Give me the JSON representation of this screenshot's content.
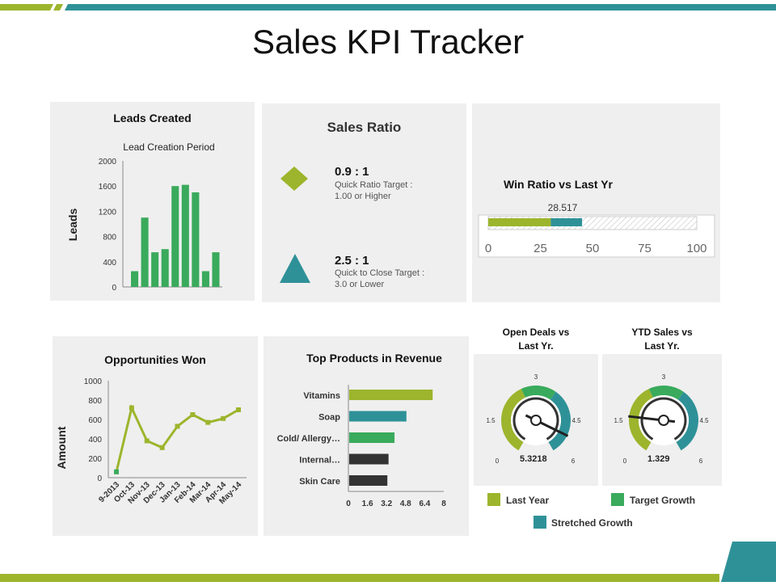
{
  "page": {
    "title": "Sales KPI Tracker"
  },
  "colors": {
    "lime": "#9cb52c",
    "green": "#3aaa5c",
    "teal": "#2f9198",
    "dark": "#333333",
    "panel": "#efefef",
    "topbar": "#2f9198",
    "bottombar": "#9cb52c"
  },
  "chart_data": [
    {
      "id": "leads",
      "type": "bar",
      "title": "Leads Created",
      "subtitle": "Lead Creation Period",
      "ylabel": "Leads",
      "ylim": [
        0,
        2000
      ],
      "yticks": [
        "2000",
        "1600",
        "1200",
        "800",
        "400",
        "0"
      ],
      "values": [
        250,
        1100,
        550,
        600,
        1600,
        1620,
        1500,
        250,
        550
      ]
    },
    {
      "id": "opportunities",
      "type": "line",
      "title": "Opportunities Won",
      "ylabel": "Amount",
      "ylim": [
        0,
        1000
      ],
      "yticks": [
        "1000",
        "800",
        "600",
        "400",
        "200",
        "0"
      ],
      "categories": [
        "9-2013",
        "Oct-13",
        "Nov-13",
        "Dec-13",
        "Jan-13",
        "Feb-14",
        "Mar-14",
        "Apr-14",
        "May-14"
      ],
      "values": [
        60,
        720,
        380,
        310,
        530,
        650,
        570,
        610,
        700
      ]
    },
    {
      "id": "top_products",
      "type": "bar",
      "orientation": "horizontal",
      "title": "Top Products in Revenue",
      "categories": [
        "Vitamins",
        "Soap",
        "Cold/ Allergy…",
        "Internal…",
        "Skin Care"
      ],
      "values": [
        7.0,
        4.8,
        3.8,
        3.3,
        3.2
      ],
      "xlim": [
        0,
        8
      ],
      "xticks": [
        "0",
        "1.6",
        "3.2",
        "4.8",
        "6.4",
        "8"
      ]
    },
    {
      "id": "win_ratio",
      "type": "bar",
      "title": "Win Ratio vs Last Yr",
      "label": "28.517",
      "segments": [
        {
          "series": "Last Year",
          "value": 30
        },
        {
          "series": "Stretched Growth",
          "value": 15
        }
      ],
      "xlim": [
        0,
        100
      ],
      "xticks": [
        "0",
        "25",
        "50",
        "75",
        "100"
      ]
    },
    {
      "id": "open_deals",
      "type": "gauge",
      "title": [
        "Open Deals vs",
        "Last Yr."
      ],
      "value": 5.3218,
      "value_label": "5.3218",
      "range": [
        0,
        6
      ],
      "tick_labels": [
        "0",
        "1.5",
        "3",
        "4.5",
        "6"
      ]
    },
    {
      "id": "ytd_sales",
      "type": "gauge",
      "title": [
        "YTD Sales vs",
        "Last Yr."
      ],
      "value": 1.329,
      "value_label": "1.329",
      "range": [
        0,
        6
      ],
      "tick_labels": [
        "0",
        "1.5",
        "3",
        "4.5",
        "6"
      ]
    }
  ],
  "sales_ratio": {
    "title": "Sales Ratio",
    "quick": {
      "value": "0.9 : 1",
      "desc_line1": "Quick Ratio Target :",
      "desc_line2": "1.00 or Higher"
    },
    "close": {
      "value": "2.5 : 1",
      "desc_line1": "Quick to Close Target :",
      "desc_line2": "3.0 or Lower"
    }
  },
  "legend": [
    {
      "label": "Last Year"
    },
    {
      "label": "Target Growth"
    },
    {
      "label": "Stretched Growth"
    }
  ]
}
